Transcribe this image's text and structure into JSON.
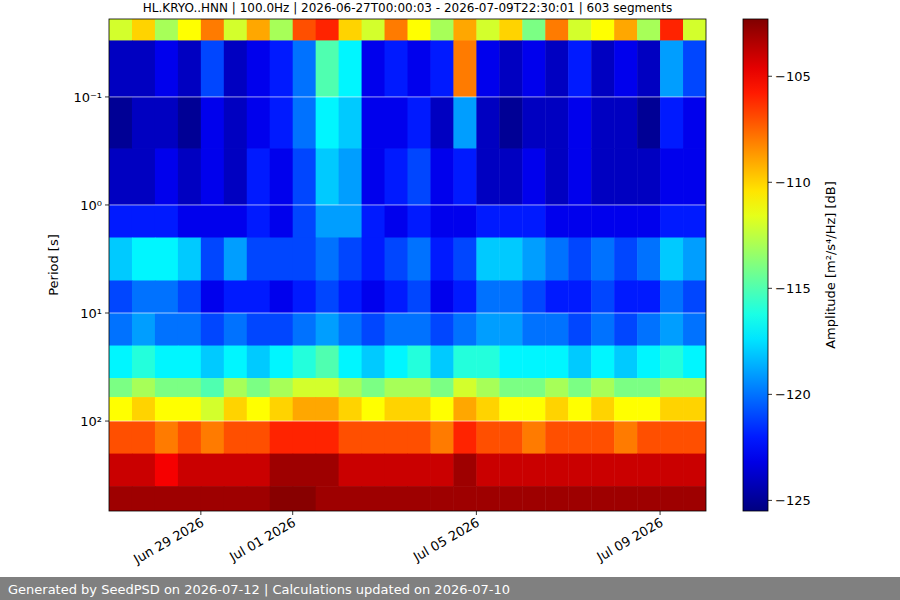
{
  "chart_data": {
    "type": "heatmap",
    "title": "HL.KRYO..HNN | 100.0Hz | 2026-06-27T00:00:03 - 2026-07-09T22:30:01 | 603 segments",
    "y_label": "Period [s]",
    "colorbar_label": "Amplitude [m²/s⁴/Hz] [dB]",
    "footer": "Generated by SeedPSD on 2026-07-12 | Calculations updated on 2026-07-10",
    "log": "y",
    "grid": true,
    "xlim": [
      "2026-06-27T00:00",
      "2026-07-10T00:00"
    ],
    "xticks": [
      {
        "value": "2026-06-29T00:00",
        "label": "Jun 29 2026"
      },
      {
        "value": "2026-07-01T00:00",
        "label": "Jul 01 2026"
      },
      {
        "value": "2026-07-05T00:00",
        "label": "Jul 05 2026"
      },
      {
        "value": "2026-07-09T00:00",
        "label": "Jul 09 2026"
      }
    ],
    "ylim": [
      680,
      0.019
    ],
    "yticks": [
      {
        "value": 0.1,
        "label": "10⁻¹"
      },
      {
        "value": 1,
        "label": "10⁰"
      },
      {
        "value": 10,
        "label": "10¹"
      },
      {
        "value": 100,
        "label": "10²"
      }
    ],
    "clim": [
      -125.5,
      -102.3
    ],
    "cticks": [
      {
        "value": -105,
        "label": "−105"
      },
      {
        "value": -110,
        "label": "−110"
      },
      {
        "value": -115,
        "label": "−115"
      },
      {
        "value": -120,
        "label": "−120"
      },
      {
        "value": -125,
        "label": "−125"
      }
    ],
    "x_edges": [
      "2026-06-27T00:00",
      "2026-06-27T12:00",
      "2026-06-28T00:00",
      "2026-06-28T12:00",
      "2026-06-29T00:00",
      "2026-06-29T12:00",
      "2026-06-30T00:00",
      "2026-06-30T12:00",
      "2026-07-01T00:00",
      "2026-07-01T12:00",
      "2026-07-02T00:00",
      "2026-07-02T12:00",
      "2026-07-03T00:00",
      "2026-07-03T12:00",
      "2026-07-04T00:00",
      "2026-07-04T12:00",
      "2026-07-05T00:00",
      "2026-07-05T12:00",
      "2026-07-06T00:00",
      "2026-07-06T12:00",
      "2026-07-07T00:00",
      "2026-07-07T12:00",
      "2026-07-08T00:00",
      "2026-07-08T12:00",
      "2026-07-09T00:00",
      "2026-07-09T12:00",
      "2026-07-10T00:00"
    ],
    "y_edges": [
      0.019,
      0.03,
      0.1,
      0.3,
      1,
      2,
      5,
      10,
      20,
      40,
      60,
      100,
      200,
      400,
      680
    ],
    "cells": [
      [
        -112,
        -110,
        -113,
        -111,
        -108,
        -112,
        -109,
        -113,
        -107,
        -106,
        -110,
        -112,
        -108,
        -111,
        -113,
        -109,
        -112,
        -110,
        -114,
        -108,
        -112,
        -111,
        -109,
        -113,
        -106,
        -112
      ],
      [
        -124,
        -124,
        -123,
        -124,
        -121,
        -124,
        -123,
        -122,
        -120,
        -115,
        -117,
        -123,
        -122,
        -123,
        -122,
        -108,
        -123,
        -124,
        -123,
        -124,
        -122,
        -124,
        -123,
        -124,
        -119,
        -121
      ],
      [
        -125,
        -124,
        -124,
        -125,
        -123,
        -124,
        -123,
        -122,
        -120,
        -117,
        -118,
        -123,
        -123,
        -122,
        -124,
        -119,
        -124,
        -125,
        -124,
        -124,
        -123,
        -124,
        -124,
        -125,
        -122,
        -123
      ],
      [
        -124,
        -124,
        -123,
        -124,
        -123,
        -124,
        -122,
        -123,
        -121,
        -118,
        -119,
        -123,
        -122,
        -121,
        -123,
        -122,
        -124,
        -124,
        -123,
        -124,
        -123,
        -124,
        -124,
        -124,
        -123,
        -123
      ],
      [
        -122,
        -122,
        -122,
        -123,
        -123,
        -123,
        -122,
        -123,
        -121,
        -119,
        -119,
        -122,
        -123,
        -122,
        -123,
        -123,
        -122,
        -122,
        -122,
        -123,
        -123,
        -123,
        -123,
        -123,
        -122,
        -122
      ],
      [
        -118,
        -117,
        -117,
        -118,
        -121,
        -119,
        -121,
        -121,
        -121,
        -120,
        -121,
        -122,
        -121,
        -120,
        -122,
        -121,
        -118,
        -118,
        -119,
        -120,
        -121,
        -120,
        -121,
        -120,
        -118,
        -119
      ],
      [
        -121,
        -120,
        -120,
        -121,
        -123,
        -122,
        -122,
        -123,
        -122,
        -121,
        -122,
        -123,
        -122,
        -121,
        -123,
        -122,
        -120,
        -120,
        -121,
        -122,
        -122,
        -121,
        -122,
        -122,
        -120,
        -121
      ],
      [
        -120,
        -119,
        -120,
        -120,
        -121,
        -120,
        -121,
        -121,
        -120,
        -119,
        -120,
        -121,
        -120,
        -120,
        -121,
        -120,
        -119,
        -119,
        -120,
        -120,
        -121,
        -120,
        -121,
        -120,
        -119,
        -120
      ],
      [
        -117,
        -116,
        -117,
        -117,
        -118,
        -117,
        -118,
        -117,
        -116,
        -115,
        -117,
        -118,
        -117,
        -116,
        -118,
        -116,
        -116,
        -117,
        -117,
        -117,
        -118,
        -117,
        -118,
        -117,
        -116,
        -117
      ],
      [
        -114,
        -113,
        -114,
        -114,
        -115,
        -113,
        -114,
        -113,
        -112,
        -112,
        -113,
        -114,
        -113,
        -113,
        -114,
        -112,
        -113,
        -114,
        -114,
        -113,
        -114,
        -113,
        -114,
        -114,
        -113,
        -113
      ],
      [
        -111,
        -110,
        -111,
        -111,
        -112,
        -110,
        -111,
        -110,
        -109,
        -109,
        -110,
        -111,
        -110,
        -110,
        -111,
        -109,
        -110,
        -111,
        -111,
        -110,
        -111,
        -110,
        -111,
        -111,
        -110,
        -110
      ],
      [
        -107,
        -107,
        -108,
        -107,
        -108,
        -107,
        -107,
        -106,
        -106,
        -106,
        -107,
        -107,
        -107,
        -107,
        -108,
        -106,
        -107,
        -107,
        -108,
        -107,
        -107,
        -107,
        -108,
        -107,
        -107,
        -107
      ],
      [
        -104,
        -104,
        -105,
        -104,
        -104,
        -104,
        -104,
        -103,
        -103,
        -103,
        -104,
        -104,
        -104,
        -104,
        -104,
        -103,
        -104,
        -104,
        -104,
        -104,
        -104,
        -104,
        -104,
        -104,
        -104,
        -104
      ],
      [
        -103,
        -103,
        -103,
        -103,
        -103,
        -103,
        -103,
        -102.5,
        -102.5,
        -103,
        -103,
        -103,
        -103,
        -103,
        -103,
        -103,
        -103,
        -103,
        -103,
        -103,
        -103,
        -103,
        -103,
        -103,
        -103,
        -103
      ]
    ]
  }
}
